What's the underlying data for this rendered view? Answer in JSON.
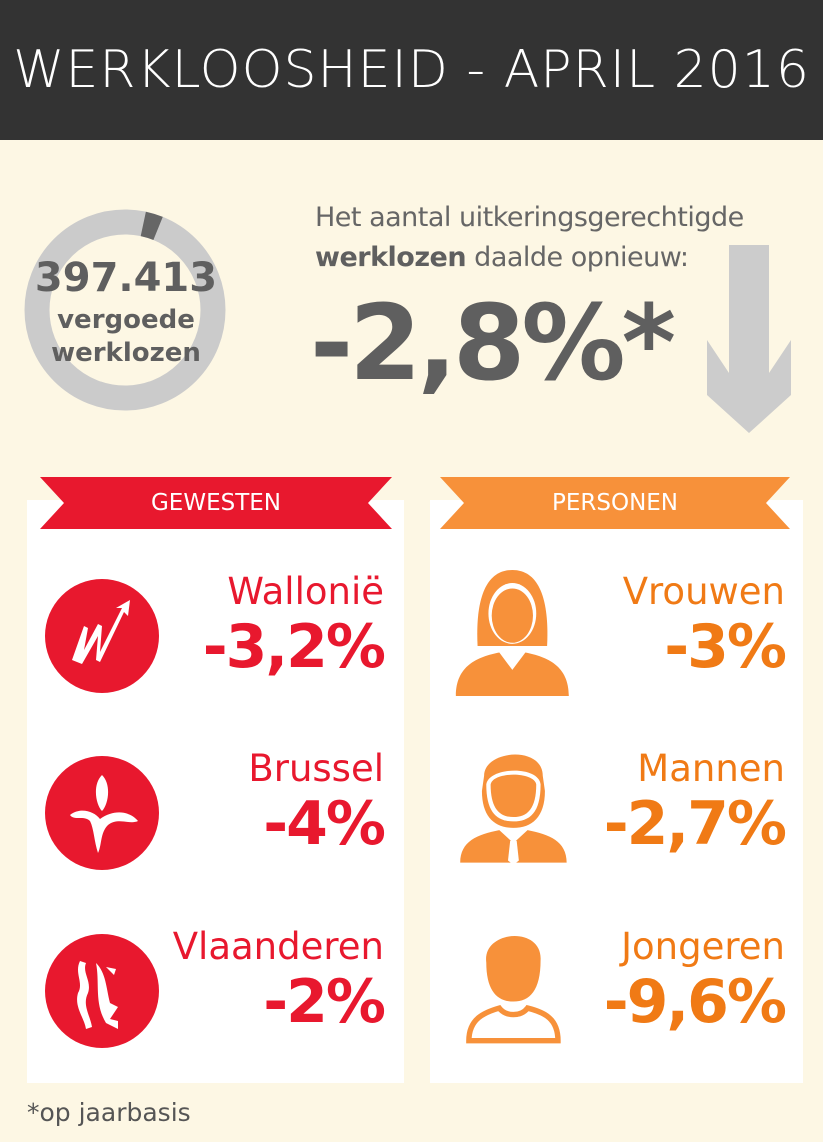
{
  "title": "WERKLOOSHEID - APRIL 2016",
  "summary": {
    "count": "397.413",
    "count_label_1": "vergoede",
    "count_label_2": "werklozen",
    "donut_fraction_highlight": 0.028,
    "intro_1": "Het aantal uitkeringsgerechtigde",
    "intro_bold": "werklozen",
    "intro_2": " daalde opnieuw:",
    "change": "-2,8%*",
    "arrow_icon": "arrow-down-icon"
  },
  "gewesten": {
    "label": "GEWESTEN",
    "color": "#e8182e",
    "items": [
      {
        "name": "Wallonië",
        "value": "-3,2%",
        "icon": "wallonia-rooster-icon"
      },
      {
        "name": "Brussel",
        "value": "-4%",
        "icon": "brussels-iris-icon"
      },
      {
        "name": "Vlaanderen",
        "value": "-2%",
        "icon": "flanders-lion-icon"
      }
    ]
  },
  "personen": {
    "label": "PERSONEN",
    "color": "#f7913a",
    "items": [
      {
        "name": "Vrouwen",
        "value": "-3%",
        "icon": "woman-icon"
      },
      {
        "name": "Mannen",
        "value": "-2,7%",
        "icon": "man-icon"
      },
      {
        "name": "Jongeren",
        "value": "-9,6%",
        "icon": "youth-icon"
      }
    ]
  },
  "footnote": "*op jaarbasis"
}
